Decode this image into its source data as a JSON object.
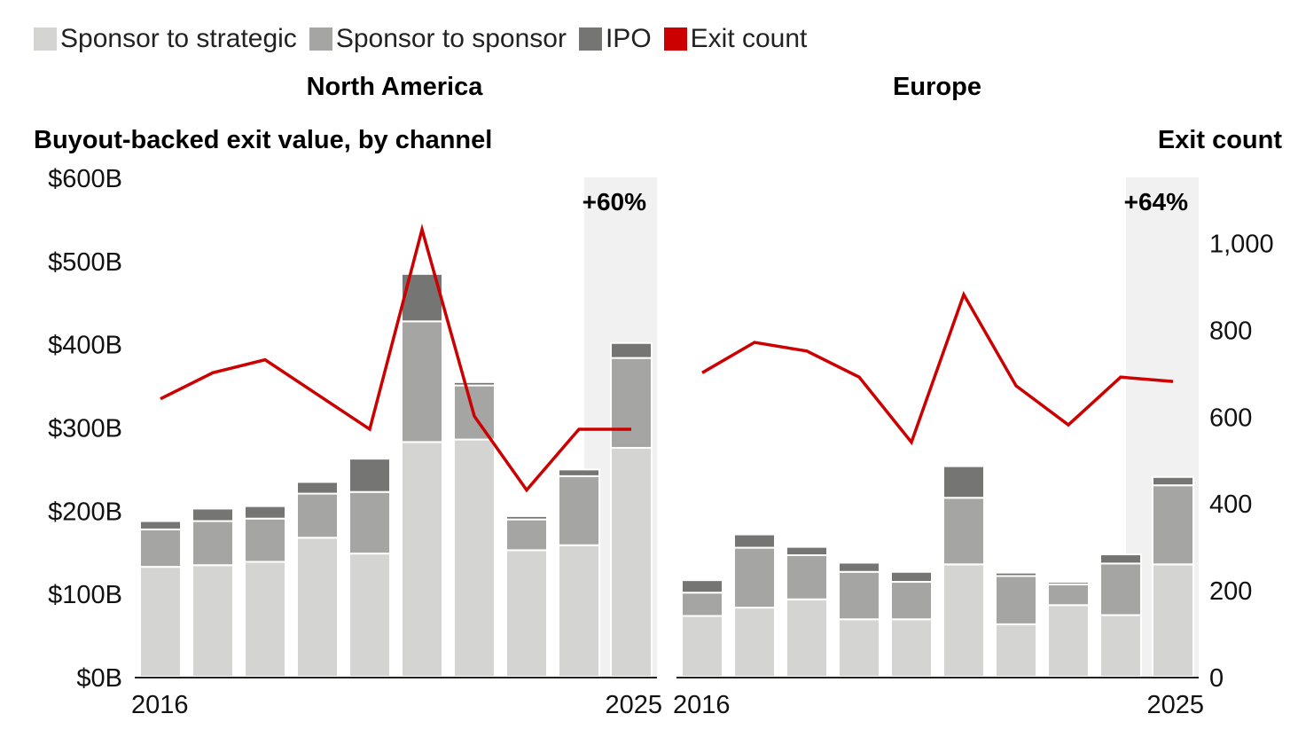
{
  "legend": [
    {
      "label": "Sponsor to strategic",
      "color": "#d4d4d2"
    },
    {
      "label": "Sponsor to sponsor",
      "color": "#a5a5a3"
    },
    {
      "label": "IPO",
      "color": "#757573"
    },
    {
      "label": "Exit count",
      "color": "#cc0000"
    }
  ],
  "left_axis_title": "Buyout-backed exit value, by channel",
  "right_axis_title": "Exit count",
  "chart_data": [
    {
      "type": "bar",
      "title": "North America",
      "x": [
        2016,
        2017,
        2018,
        2019,
        2020,
        2021,
        2022,
        2023,
        2024,
        2025
      ],
      "x_tick_labels": [
        "2016",
        "2025"
      ],
      "y_tick_labels": [
        "$0B",
        "$100B",
        "$200B",
        "$300B",
        "$400B",
        "$500B",
        "$600B"
      ],
      "ylim": [
        0,
        600
      ],
      "y2_tick_labels": [],
      "y2lim": [
        0,
        1150
      ],
      "stacked": true,
      "series": [
        {
          "name": "Sponsor to strategic",
          "values": [
            132,
            134,
            138,
            167,
            148,
            282,
            285,
            152,
            158,
            275
          ]
        },
        {
          "name": "Sponsor to sponsor",
          "values": [
            45,
            53,
            52,
            53,
            74,
            145,
            65,
            37,
            83,
            108
          ]
        },
        {
          "name": "IPO",
          "values": [
            10,
            15,
            15,
            14,
            40,
            57,
            4,
            4,
            8,
            18
          ]
        }
      ],
      "line_series": {
        "name": "Exit count",
        "values": [
          640,
          700,
          730,
          650,
          570,
          1030,
          600,
          430,
          570,
          570
        ]
      },
      "highlight": {
        "from": 2024.5,
        "to": 2025.5,
        "label": "+60%"
      }
    },
    {
      "type": "bar",
      "title": "Europe",
      "x": [
        2016,
        2017,
        2018,
        2019,
        2020,
        2021,
        2022,
        2023,
        2024,
        2025
      ],
      "x_tick_labels": [
        "2016",
        "2025"
      ],
      "y_tick_labels": [],
      "ylim": [
        0,
        600
      ],
      "y2_tick_labels": [
        "0",
        "200",
        "400",
        "600",
        "800",
        "1,000"
      ],
      "y2lim": [
        0,
        1150
      ],
      "stacked": true,
      "series": [
        {
          "name": "Sponsor to strategic",
          "values": [
            73,
            83,
            93,
            69,
            69,
            135,
            63,
            86,
            74,
            135
          ]
        },
        {
          "name": "Sponsor to sponsor",
          "values": [
            28,
            72,
            53,
            57,
            45,
            80,
            58,
            25,
            62,
            95
          ]
        },
        {
          "name": "IPO",
          "values": [
            15,
            16,
            10,
            11,
            12,
            38,
            4,
            3,
            11,
            10
          ]
        }
      ],
      "line_series": {
        "name": "Exit count",
        "values": [
          700,
          770,
          750,
          690,
          540,
          880,
          670,
          580,
          690,
          680
        ]
      },
      "highlight": {
        "from": 2024.5,
        "to": 2025.5,
        "label": "+64%"
      }
    }
  ]
}
